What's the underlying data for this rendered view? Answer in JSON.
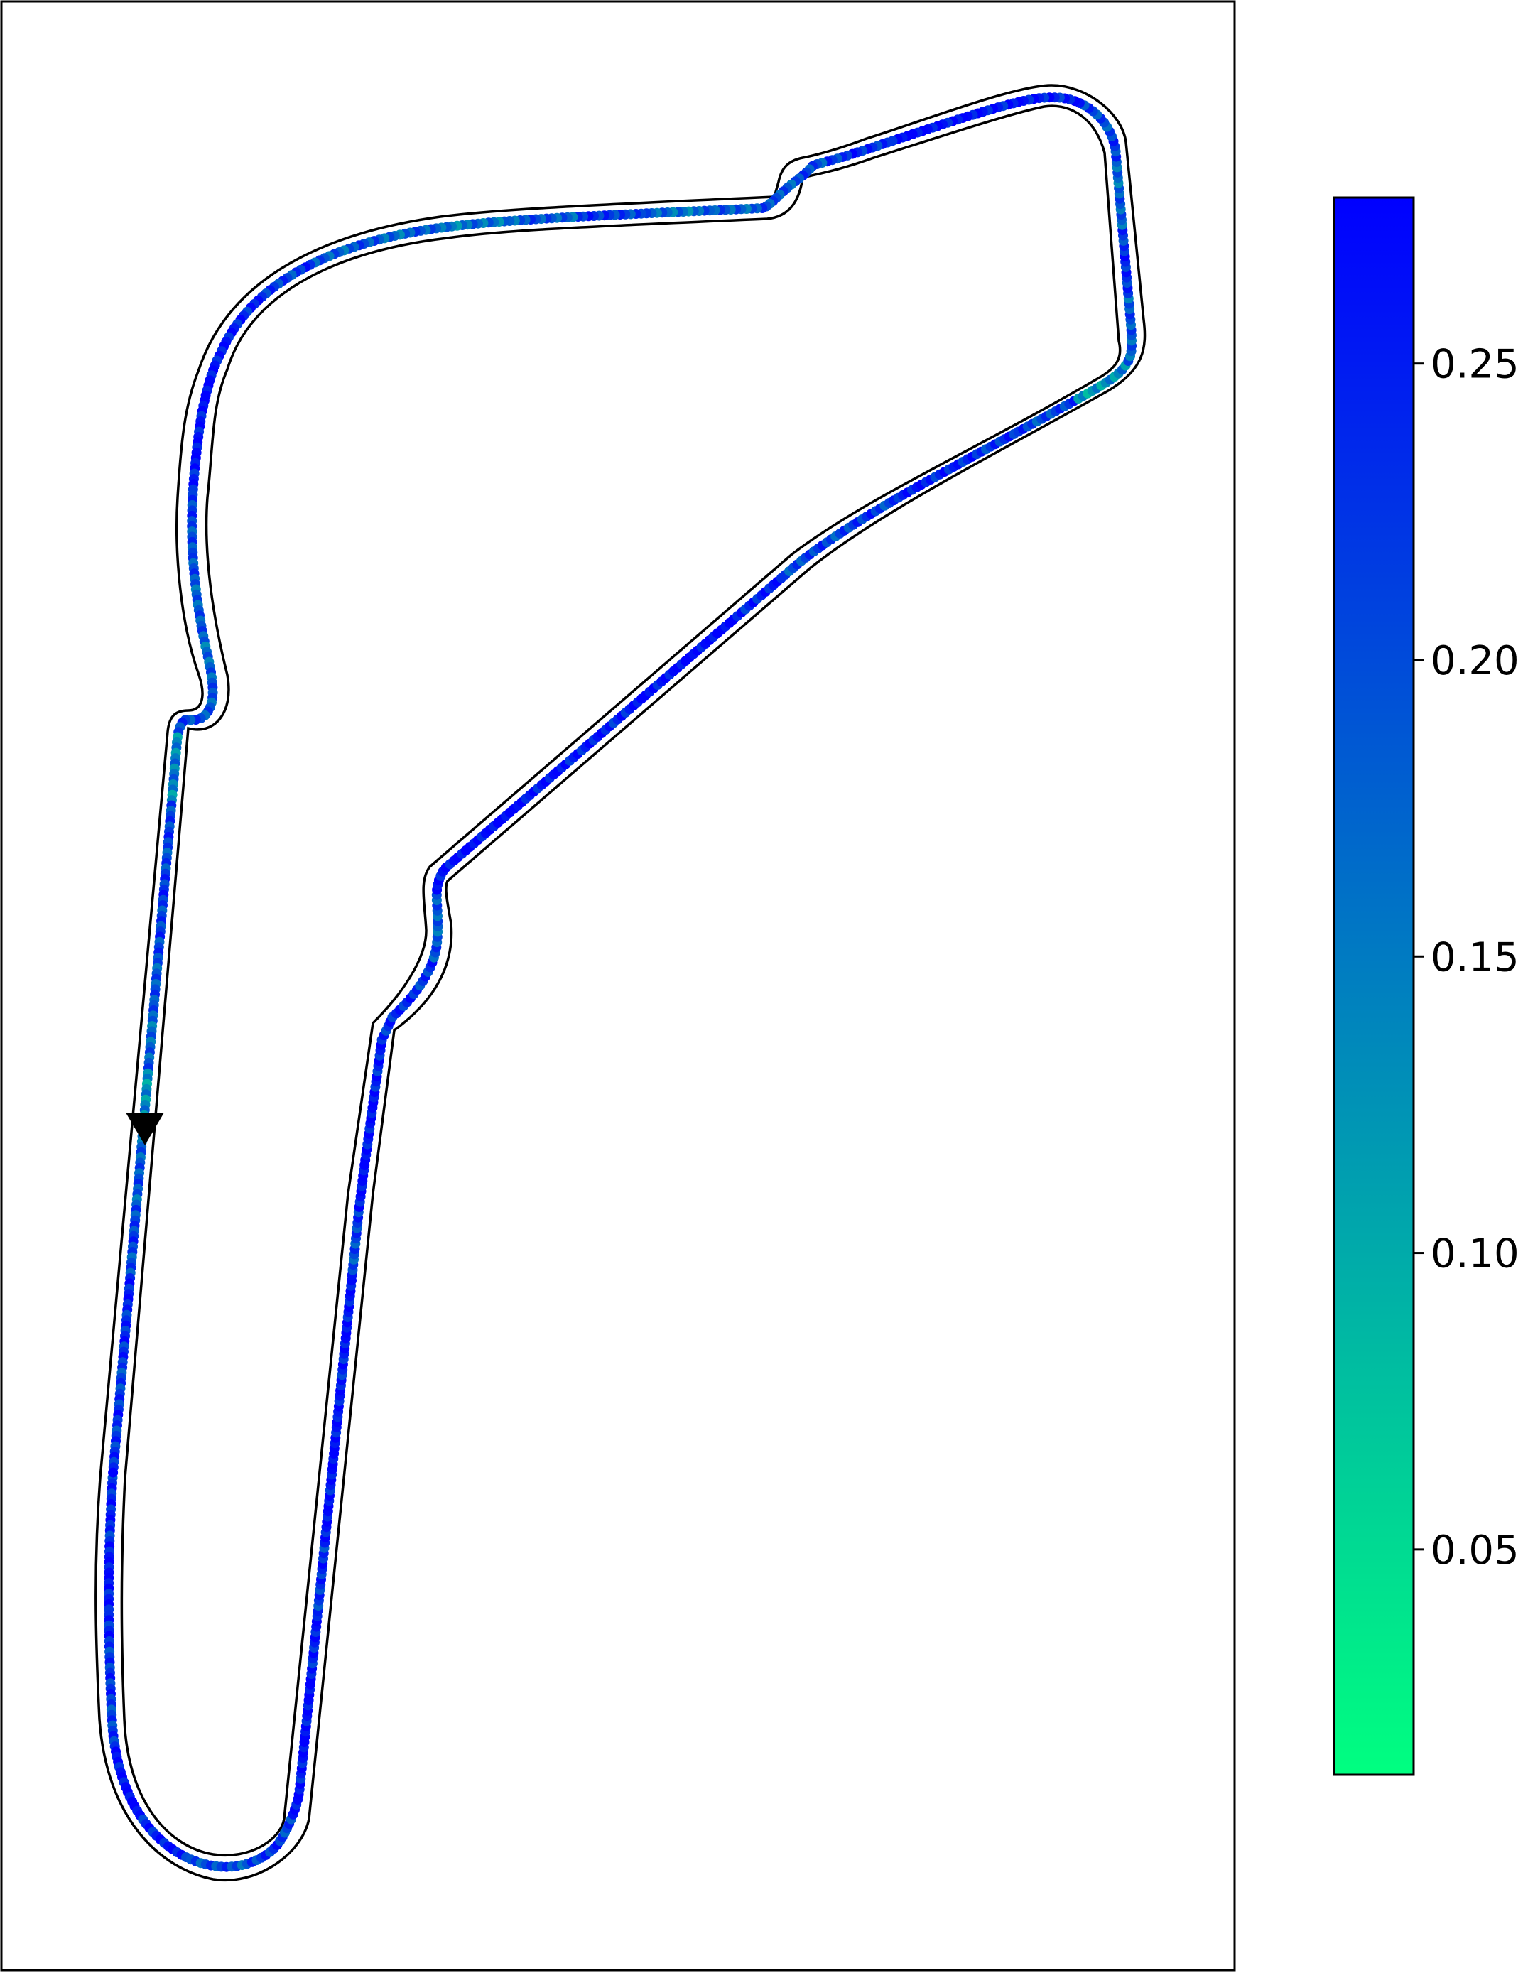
{
  "chart_data": {
    "type": "scatter",
    "title": "",
    "xlabel": "",
    "ylabel": "",
    "grid": false,
    "axes_ticks_visible": false,
    "colormap": {
      "name": "winter_r",
      "low_color": "#00ff80",
      "high_color": "#0000ff",
      "range": [
        0.012,
        0.278
      ]
    },
    "colorbar": {
      "location": "right",
      "ticks": [
        0.05,
        0.1,
        0.15,
        0.2,
        0.25
      ],
      "tick_labels": [
        "0.05",
        "0.10",
        "0.15",
        "0.20",
        "0.25"
      ]
    },
    "direction_marker": "downward triangle on the left straight indicating travel direction",
    "track": {
      "description": "closed-circuit race track outline (inner and outer boundary) with a driven racing line colored by value",
      "centerline_x": [
        205,
        228,
        246,
        264,
        282,
        302,
        323,
        344,
        365,
        386,
        398,
        420,
        460,
        520,
        600,
        620,
        720,
        830,
        930,
        1000,
        1050,
        1085,
        1110,
        1150,
        1200,
        1300,
        1400,
        1500,
        1560,
        1580,
        1590,
        1570,
        1510,
        1300,
        1150,
        1060,
        960,
        850,
        730,
        650,
        625,
        612,
        600,
        585,
        566,
        540,
        512,
        498,
        480,
        456,
        430,
        398,
        370,
        340,
        312,
        292,
        285,
        283,
        294,
        333,
        420,
        530,
        600,
        700,
        880,
        1070,
        1200,
        1255,
        1285,
        1300
      ],
      "centerline_y": [
        1580,
        1380,
        1180,
        1020,
        1010,
        960,
        880,
        780,
        700,
        640,
        560,
        480,
        410,
        360,
        330,
        320,
        310,
        304,
        300,
        280,
        260,
        240,
        220,
        200,
        180,
        155,
        140,
        170,
        250,
        350,
        460,
        530,
        560,
        670,
        750,
        830,
        920,
        1010,
        1110,
        1180,
        1200,
        1240,
        1320,
        1400,
        1430,
        1450,
        1500,
        1560,
        1620,
        1800,
        2050,
        2300,
        2500,
        2600,
        2600,
        2520,
        2400,
        2200,
        2040,
        1850,
        1600,
        1500,
        1440,
        1380,
        1320,
        1290,
        1270,
        1275,
        1290,
        1300
      ],
      "values_sample": [
        0.23,
        0.25,
        0.22,
        0.21,
        0.26,
        0.24,
        0.19,
        0.21,
        0.25,
        0.26,
        0.24,
        0.22,
        0.25,
        0.26,
        0.24,
        0.25,
        0.2,
        0.26,
        0.25,
        0.23,
        0.22,
        0.18,
        0.26,
        0.27,
        0.25,
        0.24,
        0.26,
        0.27,
        0.24,
        0.2,
        0.21,
        0.24,
        0.22,
        0.2,
        0.12,
        0.18,
        0.22,
        0.17,
        0.2,
        0.24,
        0.25,
        0.26,
        0.22,
        0.19,
        0.18,
        0.16,
        0.21,
        0.18,
        0.15,
        0.17,
        0.18,
        0.21,
        0.24,
        0.26,
        0.25,
        0.2,
        0.18,
        0.17,
        0.19,
        0.14,
        0.2,
        0.21,
        0.19,
        0.17,
        0.13,
        0.18,
        0.2,
        0.23,
        0.21,
        0.22
      ]
    }
  }
}
